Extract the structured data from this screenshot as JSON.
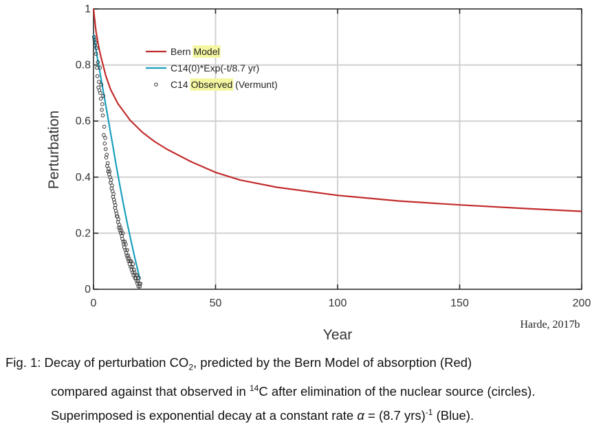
{
  "chart_data": {
    "type": "line",
    "xlabel": "Year",
    "ylabel": "Perturbation",
    "xlim": [
      0,
      200
    ],
    "ylim": [
      0,
      1
    ],
    "xticks": [
      "0",
      "50",
      "100",
      "150",
      "200"
    ],
    "yticks": [
      "0",
      "0.2",
      "0.4",
      "0.6",
      "0.8",
      "1"
    ],
    "grid": true,
    "legend_position": "upper-left",
    "series": [
      {
        "name": "Bern Model",
        "legend_parts": [
          "Bern ",
          "Model",
          ""
        ],
        "style": "line",
        "color": "#c22b2b",
        "x": [
          0,
          1,
          2,
          3,
          5,
          7,
          10,
          15,
          20,
          25,
          30,
          40,
          50,
          60,
          75,
          100,
          125,
          150,
          175,
          200
        ],
        "y": [
          1.0,
          0.92,
          0.87,
          0.83,
          0.762,
          0.713,
          0.662,
          0.603,
          0.56,
          0.527,
          0.5,
          0.455,
          0.417,
          0.39,
          0.364,
          0.335,
          0.315,
          0.301,
          0.289,
          0.278
        ]
      },
      {
        "name": "C14(0)*Exp(-t/8.7 yr)",
        "legend_parts": [
          "C14(0)*Exp(-t/8.7 yr)",
          "",
          ""
        ],
        "style": "line",
        "color": "#1a9fbe",
        "x": [
          0,
          1,
          2,
          3,
          4,
          5,
          6,
          7,
          8,
          9,
          10,
          11,
          12,
          13,
          14,
          15,
          16,
          17,
          18,
          19
        ],
        "y": [
          0.91,
          0.856,
          0.804,
          0.755,
          0.706,
          0.657,
          0.608,
          0.558,
          0.508,
          0.457,
          0.408,
          0.36,
          0.315,
          0.27,
          0.228,
          0.187,
          0.148,
          0.11,
          0.073,
          0.036
        ]
      },
      {
        "name": "C14 Observed (Vermunt)",
        "legend_parts": [
          "C14 ",
          "Observed",
          " (Vermunt)"
        ],
        "style": "circles",
        "color": "#333333",
        "x": [
          0.2,
          0.4,
          0.6,
          0.8,
          1.0,
          1.2,
          1.4,
          1.6,
          1.8,
          2.0,
          2.2,
          2.4,
          2.6,
          2.8,
          3.0,
          3.2,
          3.4,
          3.6,
          3.8,
          4.0,
          4.2,
          4.4,
          4.6,
          4.8,
          5.0,
          5.2,
          5.4,
          5.6,
          5.8,
          6.0,
          6.2,
          6.4,
          6.6,
          6.8,
          7.0,
          7.2,
          7.4,
          7.6,
          7.8,
          8.0,
          8.2,
          8.4,
          8.6,
          8.8,
          9.0,
          9.2,
          9.4,
          9.6,
          9.8,
          10.0,
          10.2,
          10.4,
          10.6,
          10.8,
          11.0,
          11.2,
          11.4,
          11.6,
          11.8,
          12.0,
          12.2,
          12.4,
          12.6,
          12.8,
          13.0,
          13.2,
          13.4,
          13.6,
          13.8,
          14.0,
          14.2,
          14.4,
          14.6,
          14.8,
          15.0,
          15.2,
          15.4,
          15.6,
          15.8,
          16.0,
          16.2,
          16.4,
          16.6,
          16.8,
          17.0,
          17.2,
          17.4,
          17.6,
          17.8,
          18.0,
          18.2,
          18.4,
          18.6,
          18.8,
          19.0,
          19.2
        ],
        "y": [
          0.9,
          0.89,
          0.87,
          0.88,
          0.84,
          0.86,
          0.79,
          0.76,
          0.81,
          0.72,
          0.74,
          0.71,
          0.79,
          0.7,
          0.68,
          0.73,
          0.64,
          0.66,
          0.62,
          0.69,
          0.55,
          0.58,
          0.52,
          0.54,
          0.5,
          0.47,
          0.48,
          0.44,
          0.45,
          0.42,
          0.43,
          0.41,
          0.42,
          0.4,
          0.38,
          0.39,
          0.36,
          0.37,
          0.35,
          0.33,
          0.34,
          0.32,
          0.31,
          0.29,
          0.3,
          0.28,
          0.27,
          0.26,
          0.26,
          0.24,
          0.25,
          0.22,
          0.23,
          0.21,
          0.22,
          0.2,
          0.21,
          0.19,
          0.18,
          0.2,
          0.17,
          0.16,
          0.15,
          0.17,
          0.14,
          0.16,
          0.13,
          0.12,
          0.14,
          0.11,
          0.12,
          0.1,
          0.11,
          0.09,
          0.1,
          0.08,
          0.1,
          0.07,
          0.08,
          0.06,
          0.09,
          0.05,
          0.07,
          0.06,
          0.04,
          0.05,
          0.04,
          0.03,
          0.05,
          0.02,
          0.03,
          0.01,
          0.04,
          0.02,
          0.01,
          0.02
        ]
      }
    ],
    "annotations": [
      "Harde, 2017b"
    ]
  },
  "legend_highlight_color": "#f4f7a0",
  "caption": {
    "line1": {
      "a": "Fig. 1: Decay of perturbation CO",
      "sub": "2",
      "b": ", predicted by the Bern Model of absorption (Red)"
    },
    "line2": {
      "a": "compared against that observed in ",
      "sup": "14",
      "b": "C after elimination of the nuclear source (circles)."
    },
    "line3": {
      "a": "Superimposed is exponential decay at a constant rate ",
      "alpha": "α",
      "b": " = (8.7 yrs)",
      "sup": "-1",
      "c": " (Blue)."
    }
  }
}
